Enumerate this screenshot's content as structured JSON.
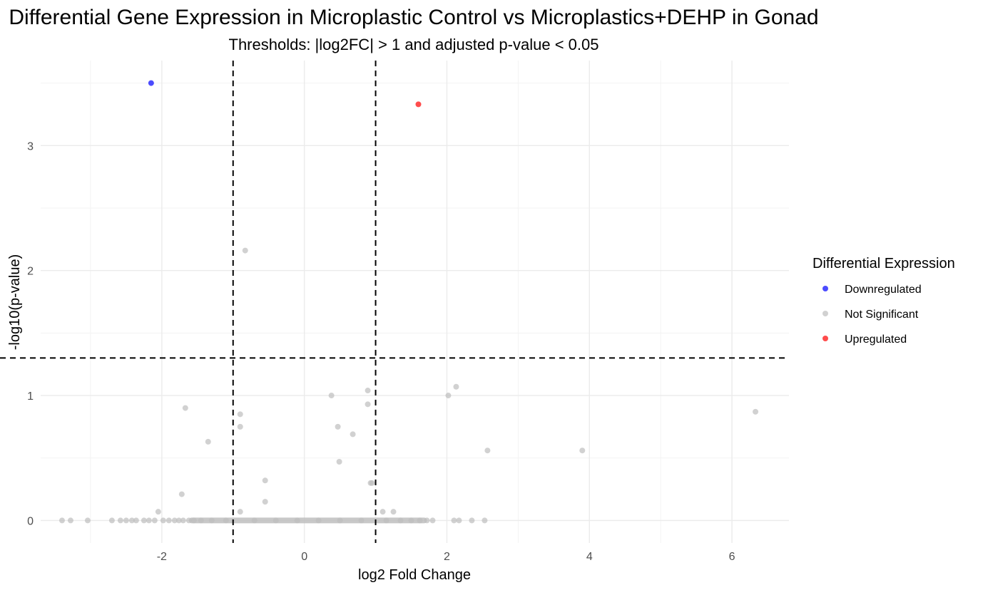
{
  "chart_data": {
    "type": "scatter",
    "title": "Differential Gene Expression in Microplastic Control vs Microplastics+DEHP in Gonad",
    "subtitle": "Thresholds: |log2FC| > 1 and adjusted p-value < 0.05",
    "xlabel": "log2 Fold Change",
    "ylabel": "-log10(p-value)",
    "xlim": [
      -3.7,
      6.8
    ],
    "ylim": [
      -0.18,
      3.68
    ],
    "x_ticks": [
      -2,
      0,
      2,
      4,
      6
    ],
    "x_tick_labels": [
      "-2",
      "0",
      "2",
      "4",
      "6"
    ],
    "y_ticks": [
      0,
      1,
      2,
      3
    ],
    "y_tick_labels": [
      "0",
      "1",
      "2",
      "3"
    ],
    "grid": true,
    "thresholds": {
      "log2fc": [
        -1,
        1
      ],
      "neg_log10_p": 1.3
    },
    "legend": {
      "title": "Differential Expression",
      "position": "right",
      "entries": [
        {
          "label": "Downregulated",
          "color": "#0000ff"
        },
        {
          "label": "Not Significant",
          "color": "#bebebe"
        },
        {
          "label": "Upregulated",
          "color": "#ff0000"
        }
      ]
    },
    "series": [
      {
        "name": "Downregulated",
        "color": "#0000ff",
        "points": [
          [
            -2.15,
            3.5
          ]
        ]
      },
      {
        "name": "Upregulated",
        "color": "#ff0000",
        "points": [
          [
            1.6,
            3.33
          ]
        ]
      },
      {
        "name": "Not Significant",
        "color": "#bebebe",
        "points": [
          [
            -0.83,
            2.16
          ],
          [
            -1.67,
            0.9
          ],
          [
            -0.9,
            0.85
          ],
          [
            -0.9,
            0.75
          ],
          [
            -1.35,
            0.63
          ],
          [
            -1.72,
            0.21
          ],
          [
            -0.55,
            0.32
          ],
          [
            -0.55,
            0.15
          ],
          [
            -0.9,
            0.07
          ],
          [
            -2.05,
            0.07
          ],
          [
            0.38,
            1.0
          ],
          [
            0.89,
            1.04
          ],
          [
            0.89,
            0.93
          ],
          [
            0.47,
            0.75
          ],
          [
            0.68,
            0.69
          ],
          [
            0.49,
            0.47
          ],
          [
            0.93,
            0.3
          ],
          [
            0.95,
            0.3
          ],
          [
            1.1,
            0.07
          ],
          [
            1.25,
            0.07
          ],
          [
            2.02,
            1.0
          ],
          [
            2.13,
            1.07
          ],
          [
            2.57,
            0.56
          ],
          [
            3.9,
            0.56
          ],
          [
            6.33,
            0.87
          ],
          [
            -3.4,
            0.0
          ],
          [
            -3.28,
            0.0
          ],
          [
            -3.04,
            0.0
          ],
          [
            -2.7,
            0.0
          ],
          [
            -2.58,
            0.0
          ],
          [
            -2.5,
            0.0
          ],
          [
            -2.42,
            0.0
          ],
          [
            -2.36,
            0.0
          ],
          [
            -2.25,
            0.0
          ],
          [
            -2.18,
            0.0
          ],
          [
            -2.1,
            0.0
          ],
          [
            -1.98,
            0.0
          ],
          [
            -1.9,
            0.0
          ],
          [
            -1.82,
            0.0
          ],
          [
            -1.76,
            0.0
          ],
          [
            -1.7,
            0.0
          ],
          [
            -1.62,
            0.0
          ],
          [
            -1.55,
            0.0
          ],
          [
            -1.45,
            0.0
          ],
          [
            -1.3,
            0.0
          ],
          [
            -1.1,
            0.0
          ],
          [
            -0.7,
            0.0
          ],
          [
            -0.4,
            0.0
          ],
          [
            -0.1,
            0.0
          ],
          [
            0.2,
            0.0
          ],
          [
            0.5,
            0.0
          ],
          [
            0.8,
            0.0
          ],
          [
            1.15,
            0.0
          ],
          [
            1.35,
            0.0
          ],
          [
            1.5,
            0.0
          ],
          [
            1.62,
            0.0
          ],
          [
            1.72,
            0.0
          ],
          [
            1.8,
            0.0
          ],
          [
            2.1,
            0.0
          ],
          [
            2.17,
            0.0
          ],
          [
            2.35,
            0.0
          ],
          [
            2.53,
            0.0
          ]
        ],
        "dense_band": {
          "x_range": [
            -1.58,
            1.68
          ],
          "y": 0.0
        }
      }
    ]
  }
}
